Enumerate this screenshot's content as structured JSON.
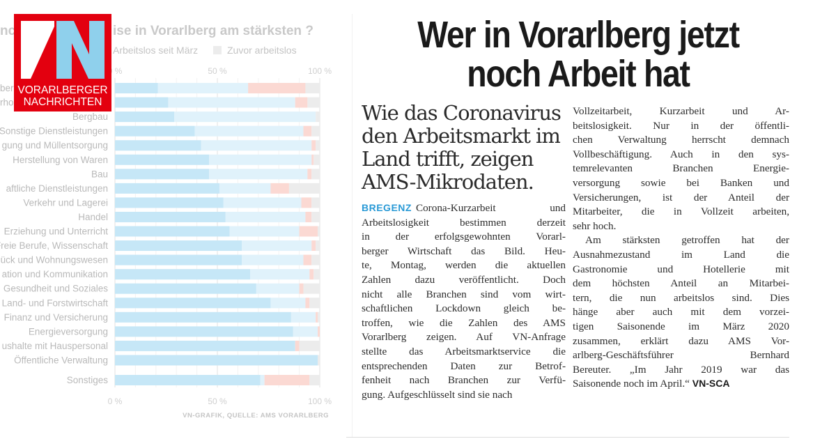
{
  "logo": {
    "letters": "VN",
    "line1": "VORARLBERGER",
    "line2": "NACHRICHTEN",
    "colors": {
      "red": "#e3000f",
      "blue": "#8fd0ec",
      "white": "#ffffff"
    }
  },
  "chart_data": {
    "type": "bar",
    "orientation": "horizontal-stacked-percent",
    "title_fragments": [
      "nch",
      "ise in Vorarlberg am stärksten ?"
    ],
    "legend_visible": [
      {
        "name": "Arbeitslos seit März",
        "color": "#fbd9d3"
      },
      {
        "name": "Zuvor arbeitslos",
        "color": "#ececec"
      }
    ],
    "xlim": [
      0,
      100
    ],
    "x_ticks": [
      "0 %",
      "50 %",
      "100 %"
    ],
    "grid": true,
    "categories": [
      "berg",
      "rhol",
      "Bergbau",
      "Sonstige Dienstleistungen",
      "gung und Müllentsorgung",
      "Herstellung von Waren",
      "Bau",
      "aftliche Dienstleistungen",
      "Verkehr und Lagerei",
      "Handel",
      "Erziehung und Unterricht",
      "Freie Berufe, Wissenschaft",
      "ück und Wohnungswesen",
      "ation und Kommunikation",
      "Gesundheit und Soziales",
      "Land- und Forstwirtschaft",
      "Finanz und Versicherung",
      "Energieversorgung",
      "ushalte mit Hauspersonal",
      "Öffentliche Verwaltung",
      "Sonstiges"
    ],
    "series": [
      {
        "color": "#c6e7f7",
        "values": [
          21,
          26,
          29,
          39,
          42,
          46,
          46,
          51,
          53,
          54,
          56,
          62,
          62,
          66,
          69,
          76,
          86,
          87,
          88,
          99,
          71
        ]
      },
      {
        "color": "#e0f2fb",
        "values": [
          44,
          62,
          69,
          53,
          54,
          50,
          48,
          25,
          38,
          39,
          34,
          34,
          30,
          29,
          21,
          17,
          12,
          12,
          0,
          0,
          2
        ]
      },
      {
        "name": "Arbeitslos seit März",
        "color": "#fbd9d3",
        "values": [
          28,
          6,
          0,
          4,
          2,
          1,
          2,
          9,
          5,
          3,
          9,
          2,
          4,
          2,
          2,
          2,
          1,
          1,
          2,
          0,
          22
        ]
      },
      {
        "name": "Zuvor arbeitslos",
        "color": "#ececec",
        "values": [
          7,
          6,
          2,
          4,
          2,
          3,
          4,
          15,
          4,
          4,
          1,
          2,
          4,
          3,
          8,
          5,
          1,
          0,
          10,
          1,
          5
        ]
      }
    ],
    "source": "VN-GRAFIK, QUELLE: AMS VORARLBERG"
  },
  "article": {
    "headline": [
      "Wer in Vorarlberg jetzt",
      "noch Arbeit hat"
    ],
    "subhead": [
      "Wie das Coronavirus",
      "den Arbeitsmarkt im",
      "Land trifft, zeigen",
      "AMS-Mikrodaten."
    ],
    "dateline": "BREGENZ",
    "col1": [
      "Corona-Kurzarbeit und",
      "Arbeitslosigkeit bestimmen derzeit",
      "in der erfolgsgewohnten Vorarl-",
      "berger Wirtschaft das Bild. Heu-",
      "te, Montag, werden die aktuellen",
      "Zahlen dazu veröffentlicht. Doch",
      "nicht alle Branchen sind vom wirt-",
      "schaftlichen Lockdown gleich be-",
      "troffen, wie die Zahlen des AMS",
      "Vorarlberg zeigen. Auf VN-Anfrage",
      "stellte das Arbeitsmarktservice die",
      "entsprechenden Daten zur Betrof-",
      "fenheit nach Branchen zur Verfü-",
      "gung. Aufgeschlüsselt sind sie nach"
    ],
    "col2": [
      "Vollzeitarbeit, Kurzarbeit und Ar-",
      "beitslosigkeit. Nur in der öffentli-",
      "chen Verwaltung herrscht demnach",
      "Vollbeschäftigung. Auch in den sys-",
      "temrelevanten Branchen Energie-",
      "versorgung sowie bei Banken und",
      "Versicherungen, ist der Anteil der",
      "Mitarbeiter, die in Vollzeit arbeiten,",
      "sehr hoch.",
      "Am stärksten getroffen hat der",
      "Ausnahmezustand im Land die",
      "Gastronomie und Hotellerie mit",
      "dem höchsten Anteil an Mitarbei-",
      "tern, die nun arbeitslos sind. Dies",
      "hänge aber auch mit dem vorzei-",
      "tigen Saisonende im März 2020",
      "zusammen, erklärt dazu AMS Vor-",
      "arlberg-Geschäftsführer Bernhard",
      "Bereuter. „Im Jahr 2019 war das",
      "Saisonende noch im April.“"
    ],
    "author": "VN-SCA"
  }
}
